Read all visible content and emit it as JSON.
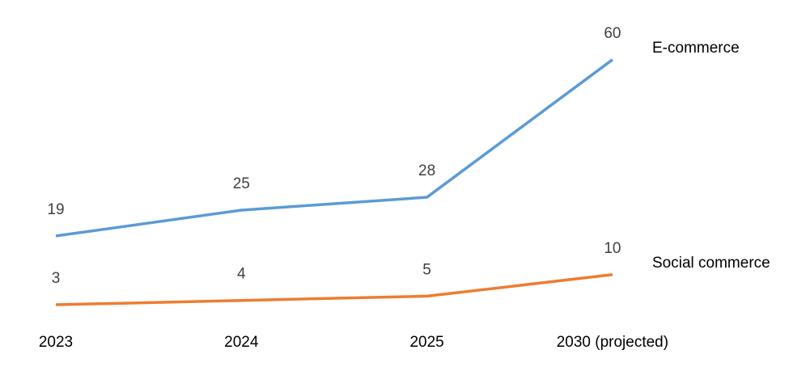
{
  "chart_data": {
    "type": "line",
    "categories": [
      "2023",
      "2024",
      "2025",
      "2030 (projected)"
    ],
    "series": [
      {
        "name": "E-commerce",
        "color": "#5b9bd5",
        "values": [
          19,
          25,
          28,
          60
        ]
      },
      {
        "name": "Social commerce",
        "color": "#ed7d31",
        "values": [
          3,
          4,
          5,
          10
        ]
      }
    ]
  }
}
